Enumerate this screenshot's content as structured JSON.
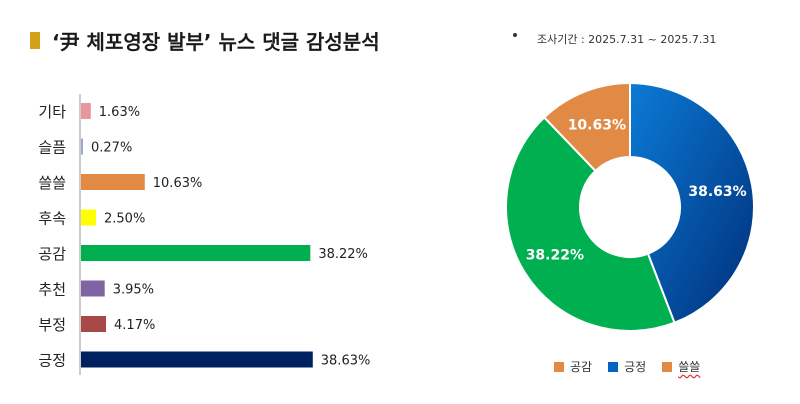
{
  "title": "‘尹 체포영장 발부’ 뉴스 댓글 감성분석",
  "survey_period": "조사기간 : 2025.7.31 ~ 2025.7.31",
  "chart_data": [
    {
      "type": "bar",
      "orientation": "horizontal",
      "categories": [
        "기타",
        "슬픔",
        "쓸쓸",
        "후속",
        "공감",
        "추천",
        "부정",
        "긍정"
      ],
      "values": [
        1.63,
        0.27,
        10.63,
        2.5,
        38.22,
        3.95,
        4.17,
        38.63
      ],
      "value_labels": [
        "1.63%",
        "0.27%",
        "10.63%",
        "2.50%",
        "38.22%",
        "3.95%",
        "4.17%",
        "38.63%"
      ],
      "colors": [
        "#e8959e",
        "#9aa8c8",
        "#e08a45",
        "#ffff00",
        "#00b050",
        "#8064a2",
        "#a84848",
        "#002060"
      ],
      "xlim": [
        0,
        40
      ],
      "grid": false
    },
    {
      "type": "pie",
      "style": "donut",
      "labels": [
        "긍정",
        "공감",
        "쓸쓸"
      ],
      "values": [
        38.63,
        38.22,
        10.63
      ],
      "value_labels": [
        "38.63%",
        "38.22%",
        "10.63%"
      ],
      "colors": [
        "#0563c1",
        "#00b050",
        "#e08a45"
      ],
      "legend": {
        "placement": "bottom",
        "entries": [
          {
            "label": "공감",
            "color": "#e08a45"
          },
          {
            "label": "긍정",
            "color": "#0563c1"
          },
          {
            "label": "쓸쓸",
            "color": "#e08a45"
          }
        ]
      }
    }
  ]
}
